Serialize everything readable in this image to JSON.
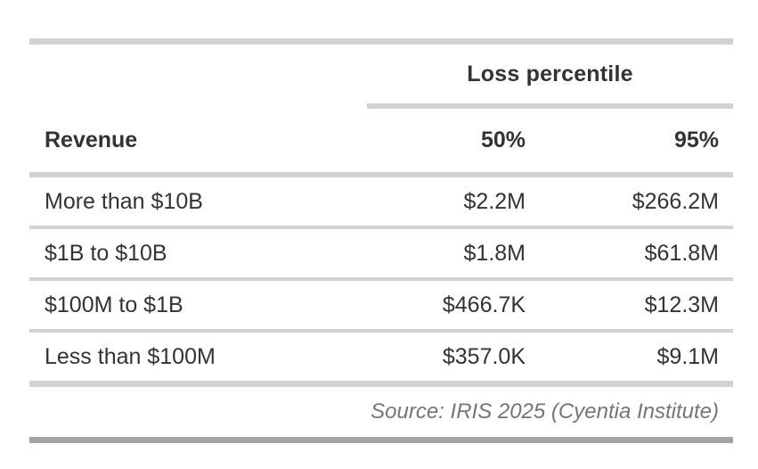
{
  "colors": {
    "text": "#333333",
    "source_text": "#757575",
    "rule_light": "#d2d2d2",
    "rule_dark": "#a3a3a3",
    "background": "#ffffff"
  },
  "chart_data": {
    "type": "table",
    "group_header": "Loss percentile",
    "columns": {
      "revenue": "Revenue",
      "p50": "50%",
      "p95": "95%"
    },
    "rows": [
      {
        "revenue": "More than $10B",
        "p50": "$2.2M",
        "p95": "$266.2M"
      },
      {
        "revenue": "$1B to $10B",
        "p50": "$1.8M",
        "p95": "$61.8M"
      },
      {
        "revenue": "$100M to $1B",
        "p50": "$466.7K",
        "p95": "$12.3M"
      },
      {
        "revenue": "Less than $100M",
        "p50": "$357.0K",
        "p95": "$9.1M"
      }
    ],
    "source": "Source: IRIS 2025 (Cyentia Institute)"
  }
}
